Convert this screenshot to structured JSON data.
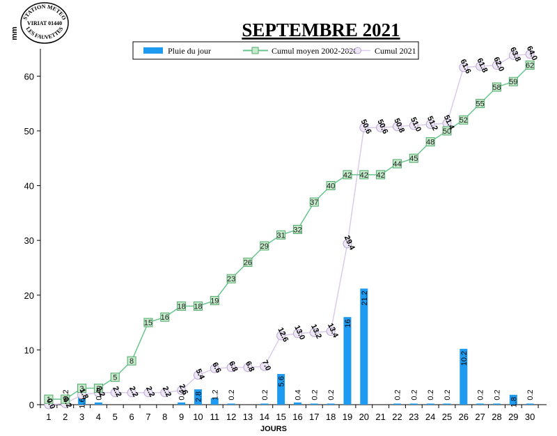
{
  "stamp": {
    "top_text": "STATION METEO",
    "middle_text": "VIRIAT 01440",
    "bottom_text": "LES FAUVETTES"
  },
  "chart_data": {
    "type": "bar+line",
    "title": "SEPTEMBRE 2021",
    "xlabel": "JOURS",
    "ylabel": "mm",
    "ylim": [
      0,
      65
    ],
    "yticks": [
      0,
      10,
      20,
      30,
      40,
      50,
      60
    ],
    "grid": false,
    "legend_position": "top",
    "categories": [
      1,
      2,
      3,
      4,
      5,
      6,
      7,
      8,
      9,
      10,
      11,
      12,
      13,
      14,
      15,
      16,
      17,
      18,
      19,
      20,
      21,
      22,
      23,
      24,
      25,
      26,
      27,
      28,
      29,
      30
    ],
    "series": [
      {
        "name": "Pluie du jour",
        "type": "bar",
        "color": "#1E9BF0",
        "values": [
          0.0,
          0.2,
          1.6,
          0.4,
          0.0,
          0.0,
          0.0,
          0.0,
          0.4,
          2.8,
          1.2,
          0.2,
          0.0,
          0.2,
          5.6,
          0.4,
          0.2,
          0.2,
          16,
          21.2,
          0.0,
          0.2,
          0.2,
          0.2,
          0.2,
          10.2,
          0.2,
          0.2,
          1.8,
          0.2
        ],
        "labels": [
          "",
          "0.2",
          "1.6",
          "0.4",
          "",
          "",
          "",
          "",
          "0.4",
          "2.8",
          "1.2",
          "0.2",
          "",
          "0.2",
          "5.6",
          "0.4",
          "0.2",
          "0.2",
          "16",
          "21.2",
          "",
          "0.2",
          "0.2",
          "0.2",
          "0.2",
          "10.2",
          "0.2",
          "0.2",
          "1.8",
          "0.2"
        ]
      },
      {
        "name": "Cumul moyen 2002-2020",
        "type": "line",
        "color": "#66C58E",
        "marker": "square",
        "values": [
          1,
          1,
          3,
          3,
          5,
          8,
          15,
          16,
          18,
          18,
          19,
          23,
          26,
          29,
          31,
          32,
          37,
          40,
          42,
          42,
          42,
          44,
          45,
          48,
          50,
          52,
          55,
          58,
          59,
          62
        ],
        "labels": [
          "1",
          "1",
          "3",
          "3",
          "5",
          "8",
          "15",
          "16",
          "18",
          "18",
          "19",
          "23",
          "26",
          "29",
          "31",
          "32",
          "37",
          "40",
          "42",
          "42",
          "42",
          "44",
          "45",
          "48",
          "50",
          "52",
          "55",
          "58",
          "59",
          "62"
        ]
      },
      {
        "name": "Cumul 2021",
        "type": "line",
        "color": "#D8CCE8",
        "marker": "circle",
        "values": [
          0.0,
          0.2,
          1.8,
          2.2,
          2.2,
          2.2,
          2.2,
          2.2,
          2.6,
          5.4,
          6.6,
          6.8,
          6.8,
          7.0,
          12.6,
          13.0,
          13.2,
          13.4,
          29.4,
          50.6,
          50.6,
          50.8,
          51.0,
          51.2,
          51.4,
          61.6,
          61.8,
          62.0,
          63.8,
          64.0
        ],
        "labels": [
          "0.0",
          "0.2",
          "1.8",
          "2.2",
          "2.2",
          "2.2",
          "2.2",
          "2.2",
          "2.6",
          "5.4",
          "6.6",
          "6.8",
          "6.8",
          "7.0",
          "12.6",
          "13.0",
          "13.2",
          "13.4",
          "29.4",
          "50.6",
          "50.6",
          "50.8",
          "51.0",
          "51.2",
          "51.4",
          "61.6",
          "61.8",
          "62.0",
          "63.8",
          "64.0"
        ]
      }
    ]
  }
}
